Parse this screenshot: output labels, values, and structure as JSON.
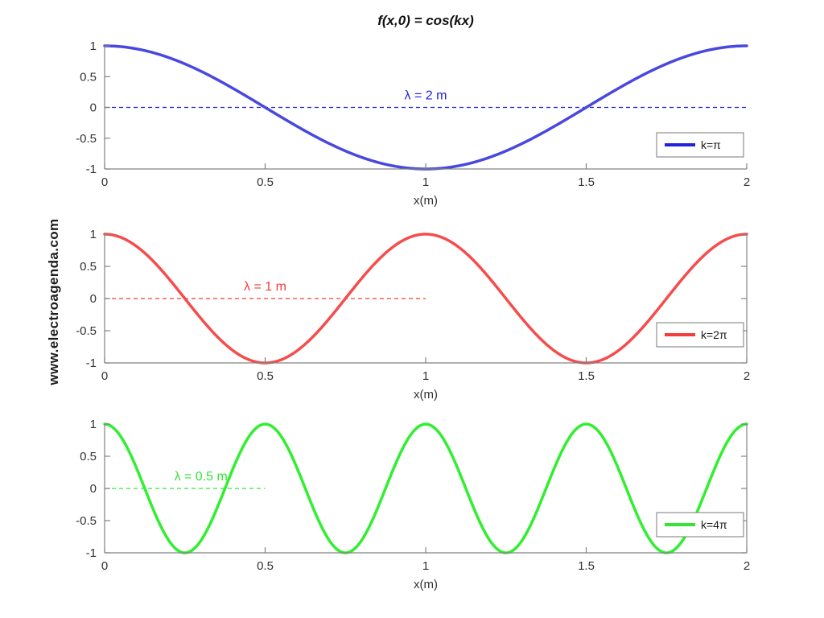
{
  "figure": {
    "title": "f(x,0) = cos(kx)",
    "watermark": "www.electroagenda.com",
    "background": "#ffffff",
    "axis_color": "#828282",
    "tick_label_color": "#333333"
  },
  "chart_data": [
    {
      "type": "line",
      "xlabel": "x(m)",
      "x_range": [
        0,
        2
      ],
      "y_range": [
        -1,
        1
      ],
      "x_ticks": [
        0,
        0.5,
        1,
        1.5,
        2
      ],
      "y_ticks": [
        -1,
        -0.5,
        0,
        0.5,
        1
      ],
      "grid": false,
      "right_spine": false,
      "series": [
        {
          "name": "k=π",
          "formula": "cos(π·x)",
          "k_pi_multiple": 1,
          "wavelength_m": 2,
          "amplitude": 1,
          "color": "#4848e0",
          "accent_color": "#2222dd"
        }
      ],
      "annotation": {
        "text": "λ = 2 m",
        "zero_dash_span_m": [
          0,
          2
        ],
        "label_x_m": 1.0
      },
      "legend": {
        "label": "k=π",
        "position": "lower right"
      }
    },
    {
      "type": "line",
      "xlabel": "x(m)",
      "x_range": [
        0,
        2
      ],
      "y_range": [
        -1,
        1
      ],
      "x_ticks": [
        0,
        0.5,
        1,
        1.5,
        2
      ],
      "y_ticks": [
        -1,
        -0.5,
        0,
        0.5,
        1
      ],
      "grid": false,
      "right_spine": true,
      "series": [
        {
          "name": "k=2π",
          "formula": "cos(2π·x)",
          "k_pi_multiple": 2,
          "wavelength_m": 1,
          "amplitude": 1,
          "color": "#f64c4c",
          "accent_color": "#f63b3b"
        }
      ],
      "annotation": {
        "text": "λ = 1 m",
        "zero_dash_span_m": [
          0,
          1
        ],
        "label_x_m": 0.5
      },
      "legend": {
        "label": "k=2π",
        "position": "lower right"
      }
    },
    {
      "type": "line",
      "xlabel": "x(m)",
      "x_range": [
        0,
        2
      ],
      "y_range": [
        -1,
        1
      ],
      "x_ticks": [
        0,
        0.5,
        1,
        1.5,
        2
      ],
      "y_ticks": [
        -1,
        -0.5,
        0,
        0.5,
        1
      ],
      "grid": false,
      "right_spine": true,
      "series": [
        {
          "name": "k=4π",
          "formula": "cos(4π·x)",
          "k_pi_multiple": 4,
          "wavelength_m": 0.5,
          "amplitude": 1,
          "color": "#30ef30",
          "accent_color": "#35e435"
        }
      ],
      "annotation": {
        "text": "λ = 0.5 m",
        "zero_dash_span_m": [
          0,
          0.5
        ],
        "label_x_m": 0.3
      },
      "legend": {
        "label": "k=4π",
        "position": "lower right"
      }
    }
  ]
}
